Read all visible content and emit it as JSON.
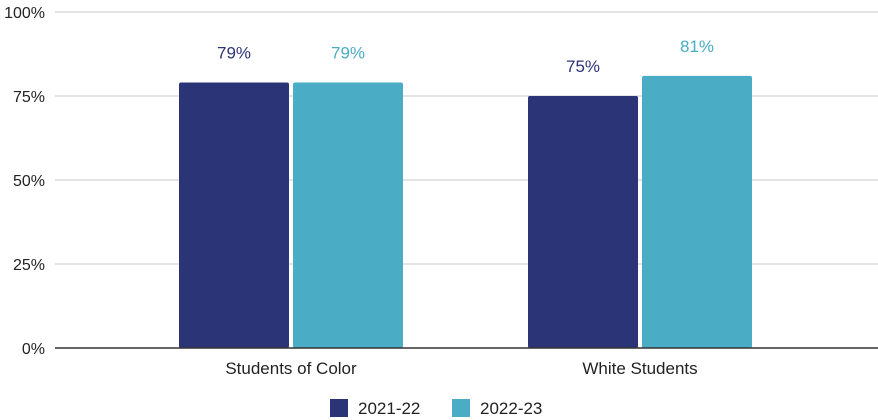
{
  "chart_data": {
    "type": "bar",
    "categories": [
      "Students of Color",
      "White Students"
    ],
    "series": [
      {
        "name": "2021-22",
        "values": [
          79,
          75
        ],
        "labels": [
          "79%",
          "75%"
        ],
        "color": "#2c3478"
      },
      {
        "name": "2022-23",
        "values": [
          79,
          81
        ],
        "labels": [
          "79%",
          "81%"
        ],
        "color": "#4aacc5"
      }
    ],
    "y_ticks": [
      {
        "value": 0,
        "label": "0%"
      },
      {
        "value": 25,
        "label": "25%"
      },
      {
        "value": 50,
        "label": "50%"
      },
      {
        "value": 75,
        "label": "75%"
      },
      {
        "value": 100,
        "label": "100%"
      }
    ],
    "ylim": [
      0,
      100
    ],
    "grid": true,
    "legend_position": "bottom",
    "title": "",
    "xlabel": "",
    "ylabel": ""
  }
}
